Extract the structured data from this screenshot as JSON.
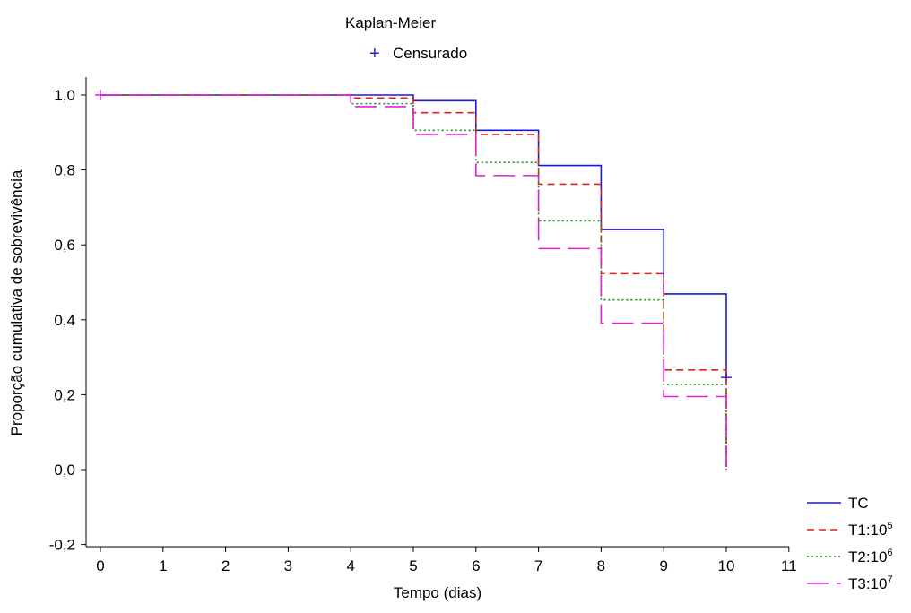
{
  "chart_data": {
    "type": "line",
    "title": "Kaplan-Meier",
    "censor_label": "Censurado",
    "xlabel": "Tempo (dias)",
    "ylabel": "Proporção cumulativa de sobrevivência",
    "xlim": [
      0,
      11
    ],
    "ylim": [
      -0.2,
      1.0
    ],
    "x_ticks": [
      0,
      1,
      2,
      3,
      4,
      5,
      6,
      7,
      8,
      9,
      10,
      11
    ],
    "x_tick_labels": [
      "0",
      "1",
      "2",
      "3",
      "4",
      "5",
      "6",
      "7",
      "8",
      "9",
      "10",
      "11"
    ],
    "y_ticks": [
      -0.2,
      0.0,
      0.2,
      0.4,
      0.6,
      0.8,
      1.0
    ],
    "y_tick_labels": [
      "-0,2",
      "0,0",
      "0,2",
      "0,4",
      "0,6",
      "0,8",
      "1,0"
    ],
    "grid": false,
    "legend_position": "bottom-right",
    "series": [
      {
        "name": "TC",
        "label_base": "TC",
        "label_sup": "",
        "color": "#1a1ad6",
        "dash": "solid",
        "x": [
          0,
          5,
          6,
          7,
          8,
          9,
          10
        ],
        "y": [
          1.0,
          0.985,
          0.906,
          0.812,
          0.641,
          0.469,
          0.246
        ],
        "censored": [
          {
            "x": 10,
            "y": 0.246
          }
        ]
      },
      {
        "name": "T1:10^5",
        "label_base": "T1:10",
        "label_sup": "5",
        "color": "#e0201a",
        "dash": "dashed",
        "x": [
          0,
          4,
          5,
          6,
          7,
          8,
          9,
          10
        ],
        "y": [
          1.0,
          0.992,
          0.953,
          0.895,
          0.762,
          0.523,
          0.266,
          0.0
        ],
        "censored": []
      },
      {
        "name": "T2:10^6",
        "label_base": "T2:10",
        "label_sup": "6",
        "color": "#1a8c1a",
        "dash": "dotted",
        "x": [
          0,
          4,
          5,
          6,
          7,
          8,
          9,
          10
        ],
        "y": [
          1.0,
          0.977,
          0.906,
          0.82,
          0.664,
          0.453,
          0.227,
          0.0
        ],
        "censored": []
      },
      {
        "name": "T3:10^7",
        "label_base": "T3:10",
        "label_sup": "7",
        "color": "#e020d8",
        "dash": "longdash",
        "x": [
          0,
          4,
          5,
          6,
          7,
          8,
          9,
          10
        ],
        "y": [
          1.0,
          0.969,
          0.895,
          0.785,
          0.59,
          0.391,
          0.195,
          0.0
        ],
        "censored": [
          {
            "x": 0,
            "y": 1.0
          }
        ]
      }
    ]
  }
}
